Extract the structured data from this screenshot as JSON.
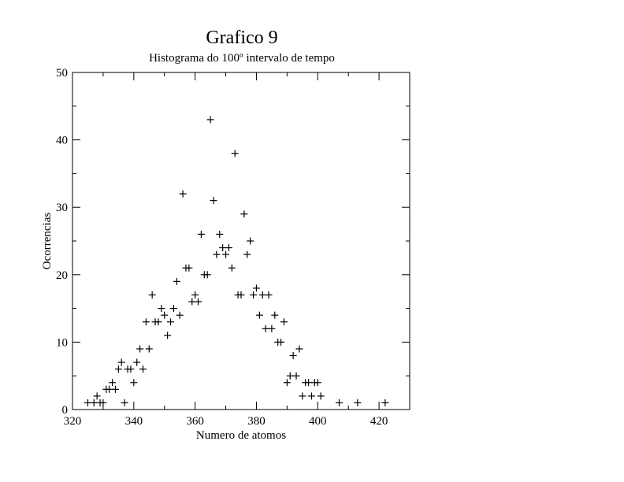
{
  "chart_data": {
    "type": "scatter",
    "title": "Grafico 9",
    "subtitle": "Histograma do 100º intervalo de tempo",
    "xlabel": "Numero de atomos",
    "ylabel": "Ocorrencias",
    "xlim": [
      320,
      430
    ],
    "ylim": [
      0,
      50
    ],
    "xticks": [
      320,
      340,
      360,
      380,
      400,
      420
    ],
    "yticks": [
      0,
      10,
      20,
      30,
      40,
      50
    ],
    "grid": false,
    "marker": "plus",
    "points": [
      {
        "x": 325,
        "y": 1
      },
      {
        "x": 327,
        "y": 1
      },
      {
        "x": 328,
        "y": 2
      },
      {
        "x": 329,
        "y": 1
      },
      {
        "x": 330,
        "y": 1
      },
      {
        "x": 331,
        "y": 3
      },
      {
        "x": 332,
        "y": 3
      },
      {
        "x": 333,
        "y": 4
      },
      {
        "x": 334,
        "y": 3
      },
      {
        "x": 335,
        "y": 6
      },
      {
        "x": 336,
        "y": 7
      },
      {
        "x": 337,
        "y": 1
      },
      {
        "x": 338,
        "y": 6
      },
      {
        "x": 339,
        "y": 6
      },
      {
        "x": 340,
        "y": 4
      },
      {
        "x": 341,
        "y": 7
      },
      {
        "x": 342,
        "y": 9
      },
      {
        "x": 343,
        "y": 6
      },
      {
        "x": 344,
        "y": 13
      },
      {
        "x": 345,
        "y": 9
      },
      {
        "x": 346,
        "y": 17
      },
      {
        "x": 347,
        "y": 13
      },
      {
        "x": 348,
        "y": 13
      },
      {
        "x": 349,
        "y": 15
      },
      {
        "x": 350,
        "y": 14
      },
      {
        "x": 351,
        "y": 11
      },
      {
        "x": 352,
        "y": 13
      },
      {
        "x": 353,
        "y": 15
      },
      {
        "x": 354,
        "y": 19
      },
      {
        "x": 355,
        "y": 14
      },
      {
        "x": 356,
        "y": 32
      },
      {
        "x": 357,
        "y": 21
      },
      {
        "x": 358,
        "y": 21
      },
      {
        "x": 359,
        "y": 16
      },
      {
        "x": 360,
        "y": 17
      },
      {
        "x": 361,
        "y": 16
      },
      {
        "x": 362,
        "y": 26
      },
      {
        "x": 363,
        "y": 20
      },
      {
        "x": 364,
        "y": 20
      },
      {
        "x": 365,
        "y": 43
      },
      {
        "x": 366,
        "y": 31
      },
      {
        "x": 367,
        "y": 23
      },
      {
        "x": 368,
        "y": 26
      },
      {
        "x": 369,
        "y": 24
      },
      {
        "x": 370,
        "y": 23
      },
      {
        "x": 371,
        "y": 24
      },
      {
        "x": 372,
        "y": 21
      },
      {
        "x": 373,
        "y": 38
      },
      {
        "x": 374,
        "y": 17
      },
      {
        "x": 375,
        "y": 17
      },
      {
        "x": 376,
        "y": 29
      },
      {
        "x": 377,
        "y": 23
      },
      {
        "x": 378,
        "y": 25
      },
      {
        "x": 379,
        "y": 17
      },
      {
        "x": 380,
        "y": 18
      },
      {
        "x": 381,
        "y": 14
      },
      {
        "x": 382,
        "y": 17
      },
      {
        "x": 383,
        "y": 12
      },
      {
        "x": 384,
        "y": 17
      },
      {
        "x": 385,
        "y": 12
      },
      {
        "x": 386,
        "y": 14
      },
      {
        "x": 387,
        "y": 10
      },
      {
        "x": 388,
        "y": 10
      },
      {
        "x": 389,
        "y": 13
      },
      {
        "x": 390,
        "y": 4
      },
      {
        "x": 391,
        "y": 5
      },
      {
        "x": 392,
        "y": 8
      },
      {
        "x": 393,
        "y": 5
      },
      {
        "x": 394,
        "y": 9
      },
      {
        "x": 395,
        "y": 2
      },
      {
        "x": 396,
        "y": 4
      },
      {
        "x": 397,
        "y": 4
      },
      {
        "x": 398,
        "y": 2
      },
      {
        "x": 399,
        "y": 4
      },
      {
        "x": 400,
        "y": 4
      },
      {
        "x": 401,
        "y": 2
      },
      {
        "x": 407,
        "y": 1
      },
      {
        "x": 413,
        "y": 1
      },
      {
        "x": 422,
        "y": 1
      }
    ]
  }
}
